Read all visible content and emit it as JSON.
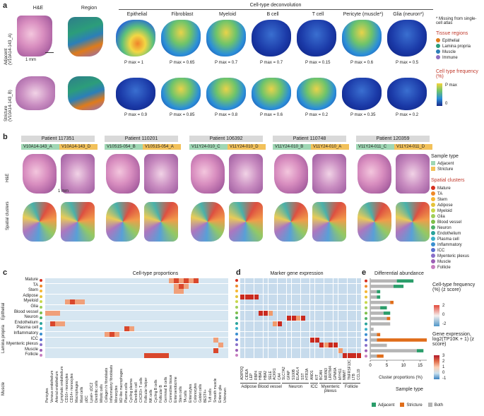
{
  "panel_a": {
    "label": "a",
    "header_cell_type": "Cell-type deconvolution",
    "columns": [
      "H&E",
      "Region",
      "Epithelial",
      "Fibroblast",
      "Myeloid",
      "B cell",
      "T cell",
      "Pericyte (muscle*)",
      "Glia (neuron*)"
    ],
    "row_adjacent": "Adjacent\n(V10A14-143_A)",
    "row_stricture": "Stricture\n(V10A14-143_B)",
    "scale_1mm": "1 mm",
    "pmax_adjacent": [
      "P max = 1",
      "P max = 0.65",
      "P max = 0.7",
      "P max = 0.7",
      "P max = 0.15",
      "P max = 0.6",
      "P max = 0.5"
    ],
    "pmax_stricture": [
      "P max = 0.9",
      "P max = 0.85",
      "P max = 0.8",
      "P max = 0.6",
      "P max = 0.2",
      "P max = 0.35",
      "P max = 0.2"
    ],
    "missing_note": "* Missing from single-cell atlas",
    "tissue_regions_title": "Tissue regions",
    "tissue_regions": [
      {
        "name": "Epithelial",
        "color": "#e07b1a"
      },
      {
        "name": "Lamina propria",
        "color": "#2c9d7a"
      },
      {
        "name": "Muscle",
        "color": "#2c7fb8"
      },
      {
        "name": "Immune",
        "color": "#8e6fc0"
      }
    ],
    "freq_title": "Cell type frequency (%)",
    "freq_max": "P max",
    "freq_min": "0"
  },
  "panel_b": {
    "label": "b",
    "patients": [
      {
        "name": "Patient 117351",
        "samples": [
          {
            "id": "V10A14-143_A",
            "type": "adj"
          },
          {
            "id": "V10A14-143_D",
            "type": "str"
          }
        ]
      },
      {
        "name": "Patient 110201",
        "samples": [
          {
            "id": "V10S15-054_B",
            "type": "adj"
          },
          {
            "id": "V10S15-054_A",
            "type": "str"
          }
        ]
      },
      {
        "name": "Patient 106392",
        "samples": [
          {
            "id": "V11Y24-010_C",
            "type": "adj"
          },
          {
            "id": "V11Y24-010_D",
            "type": "str"
          }
        ]
      },
      {
        "name": "Patient 110748",
        "samples": [
          {
            "id": "V11Y24-010_B",
            "type": "adj"
          },
          {
            "id": "V11Y24-010_A",
            "type": "str"
          }
        ]
      },
      {
        "name": "Patient 120359",
        "samples": [
          {
            "id": "V11Y24-011_C",
            "type": "adj"
          },
          {
            "id": "V11Y24-011_D",
            "type": "str"
          }
        ]
      }
    ],
    "row_he": "H&E",
    "row_spatial": "Spatial clusters",
    "scale_1mm": "1 mm",
    "sample_type_title": "Sample type",
    "sample_types": [
      {
        "name": "Adjacent",
        "color": "#9fd7b4"
      },
      {
        "name": "Stricture",
        "color": "#f2c15a"
      }
    ],
    "clusters_title": "Spatial clusters",
    "clusters": [
      {
        "name": "Mature",
        "color": "#d7301f"
      },
      {
        "name": "TA",
        "color": "#ef8a2a"
      },
      {
        "name": "Stem",
        "color": "#f7b733"
      },
      {
        "name": "Adipose",
        "color": "#e5c33a"
      },
      {
        "name": "Myeloid",
        "color": "#c9d84a"
      },
      {
        "name": "Glia",
        "color": "#9fcf5a"
      },
      {
        "name": "Blood vessel",
        "color": "#7fbf4a"
      },
      {
        "name": "Neuron",
        "color": "#4fb06a"
      },
      {
        "name": "Endothelium",
        "color": "#2aa39b"
      },
      {
        "name": "Plasma cell",
        "color": "#3bb0c9"
      },
      {
        "name": "Inflammatory",
        "color": "#3b8fd0"
      },
      {
        "name": "ICC",
        "color": "#5a6fd0"
      },
      {
        "name": "Myenteric plexus",
        "color": "#8a6fc9"
      },
      {
        "name": "Muscle",
        "color": "#9c5fb5"
      },
      {
        "name": "Follicle",
        "color": "#c77fc0"
      }
    ]
  },
  "panel_c": {
    "label": "c",
    "title": "Cell-type proportions",
    "group_labels": [
      "Epithelial",
      "Lamina propria",
      "Muscle"
    ],
    "columns": [
      "Pericytes",
      "Venous endothelium",
      "Arterial endothelium",
      "Lymphatic endothelium",
      "CD16+ monocytes",
      "CD14+ monocytes",
      "Macrophages",
      "Mast cells",
      "pDC",
      "Lysel+ cDC2",
      "Dendritic cells",
      "Mitotic cells",
      "Collagen hi fibroblasts",
      "Inflammatory fibroblasts",
      "Monocytes",
      "M2-like macrophages",
      "Plasma cells",
      "Cycling plasma",
      "Dendritic cell",
      "CXCR3+ T cells",
      "Follicular helper",
      "NK cells",
      "Cycling B cells",
      "Follicular B",
      "Germinal B cells",
      "Connective tissue",
      "Enteroendocrine",
      "Stem cells",
      "TA cells",
      "Enterocytes",
      "Colonocytes",
      "Goblet cells",
      "BEST4+",
      "Tuft cells",
      "Smooth muscle",
      "Enteric glia",
      "Unknown"
    ],
    "rows": [
      "Mature",
      "TA",
      "Stem",
      "Adipose",
      "Myeloid",
      "Glia",
      "Blood vessel",
      "Neuron",
      "Endothelium",
      "Plasma cell",
      "Inflammatory",
      "ICC",
      "Myenteric plexus",
      "Muscle",
      "Follicle"
    ],
    "hot_cells": [
      [
        0,
        25,
        2
      ],
      [
        0,
        26,
        3
      ],
      [
        0,
        27,
        2
      ],
      [
        0,
        28,
        3
      ],
      [
        0,
        29,
        2
      ],
      [
        0,
        30,
        3
      ],
      [
        1,
        26,
        2
      ],
      [
        1,
        27,
        3
      ],
      [
        1,
        28,
        2
      ],
      [
        2,
        26,
        2
      ],
      [
        2,
        27,
        2
      ],
      [
        4,
        4,
        2
      ],
      [
        4,
        5,
        3
      ],
      [
        4,
        6,
        2
      ],
      [
        4,
        7,
        2
      ],
      [
        6,
        0,
        2
      ],
      [
        6,
        1,
        2
      ],
      [
        6,
        2,
        2
      ],
      [
        8,
        1,
        3
      ],
      [
        8,
        2,
        2
      ],
      [
        8,
        3,
        2
      ],
      [
        9,
        16,
        3
      ],
      [
        9,
        17,
        2
      ],
      [
        10,
        12,
        2
      ],
      [
        10,
        13,
        3
      ],
      [
        10,
        14,
        2
      ],
      [
        11,
        34,
        2
      ],
      [
        12,
        35,
        2
      ],
      [
        13,
        34,
        3
      ],
      [
        14,
        20,
        3
      ],
      [
        14,
        21,
        3
      ],
      [
        14,
        22,
        3
      ],
      [
        14,
        23,
        3
      ],
      [
        14,
        24,
        3
      ]
    ]
  },
  "panel_d": {
    "label": "d",
    "title": "Marker gene expression",
    "genes": [
      "ADIPOQ",
      "CIDEA",
      "LEP",
      "RBP4",
      "HBA1",
      "HBA2",
      "SELE",
      "ACKR1",
      "CA4",
      "SLC7A2",
      "GFAP",
      "S100B",
      "ELAVL4",
      "SST",
      "HTR3A",
      "ANO1",
      "KIT",
      "BCAN",
      "NRXN3",
      "LRRTM4",
      "GPM6A",
      "MYH11",
      "NNMT",
      "TNFRSF13C",
      "LTB",
      "CCL19"
    ],
    "groups": [
      {
        "name": "Adipose"
      },
      {
        "name": "Blood vessel"
      },
      {
        "name": "Neuron"
      },
      {
        "name": "ICC"
      },
      {
        "name": "Myenteric plexus"
      },
      {
        "name": "Follicle"
      }
    ],
    "hot_cells": [
      [
        3,
        0,
        3
      ],
      [
        3,
        1,
        3
      ],
      [
        3,
        2,
        3
      ],
      [
        3,
        3,
        3
      ],
      [
        6,
        4,
        3
      ],
      [
        6,
        5,
        3
      ],
      [
        6,
        6,
        2
      ],
      [
        8,
        7,
        2
      ],
      [
        8,
        8,
        3
      ],
      [
        7,
        10,
        3
      ],
      [
        7,
        11,
        3
      ],
      [
        7,
        12,
        2
      ],
      [
        7,
        13,
        3
      ],
      [
        11,
        15,
        3
      ],
      [
        11,
        16,
        3
      ],
      [
        12,
        17,
        3
      ],
      [
        12,
        18,
        2
      ],
      [
        12,
        19,
        3
      ],
      [
        12,
        20,
        3
      ],
      [
        13,
        21,
        2
      ],
      [
        14,
        22,
        3
      ],
      [
        14,
        23,
        3
      ],
      [
        14,
        24,
        3
      ],
      [
        14,
        25,
        3
      ]
    ]
  },
  "panel_e": {
    "label": "e",
    "title": "Differential abundance",
    "xlabel": "Cluster proportions (%)",
    "xticks": [
      "0",
      "5",
      "10",
      "15"
    ]
  },
  "legend_right": {
    "freq_title": "Cell-type frequency (%) (z score)",
    "freq_ticks": [
      "2",
      "0",
      "-2"
    ],
    "expr_title": "Gene expression, log2(TP10K + 1) (z score)",
    "expr_ticks": [
      "3",
      "2",
      "1",
      "0",
      "-1"
    ],
    "sample_type_title": "Sample type",
    "sample_types": [
      {
        "name": "Adjacent",
        "color": "#2a9d6a"
      },
      {
        "name": "Stricture",
        "color": "#e06d1a"
      },
      {
        "name": "Both",
        "color": "#b5b5b5"
      }
    ]
  },
  "chart_data": {
    "type": "bar",
    "title": "Differential abundance",
    "xlabel": "Cluster proportions (%)",
    "xlim": [
      0,
      17
    ],
    "categories": [
      "Mature",
      "TA",
      "Stem",
      "Adipose",
      "Myeloid",
      "Glia",
      "Blood vessel",
      "Neuron",
      "Endothelium",
      "Plasma cell",
      "Inflammatory",
      "ICC",
      "Myenteric plexus",
      "Muscle",
      "Follicle"
    ],
    "series": [
      {
        "name": "Both",
        "values": [
          8,
          7,
          2,
          2,
          6,
          3,
          4,
          5,
          6,
          1,
          2,
          2,
          5,
          14,
          2
        ]
      },
      {
        "name": "Adjacent",
        "values": [
          5,
          3,
          1,
          1,
          0,
          2,
          2,
          0,
          0,
          0,
          0,
          0,
          0,
          2,
          0
        ]
      },
      {
        "name": "Stricture",
        "values": [
          0,
          0,
          0,
          0,
          1,
          0,
          0,
          1,
          0,
          0,
          1,
          15,
          0,
          0,
          2
        ]
      }
    ]
  }
}
